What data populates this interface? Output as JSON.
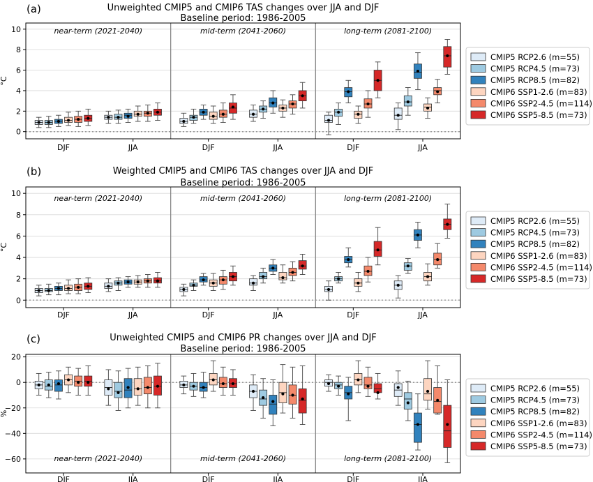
{
  "colors": {
    "CMIP5 RCP2.6": "#deebf7",
    "CMIP5 RCP4.5": "#9ecae1",
    "CMIP5 RCP8.5": "#3182bd",
    "CMIP6 SSP1-2.6": "#fdd5c0",
    "CMIP6 SSP2-4.5": "#f4896b",
    "CMIP6 SSP5-8.5": "#d62828"
  },
  "legend_entries": [
    "CMIP5 RCP2.6 (m=55)",
    "CMIP5 RCP4.5 (m=73)",
    "CMIP5 RCP8.5 (m=82)",
    "CMIP6 SSP1-2.6 (m=83)",
    "CMIP6 SSP2-4.5 (m=114)",
    "CMIP6 SSP5-8.5 (m=73)"
  ],
  "panels": [
    {
      "label": "(a)",
      "title1": "Unweighted CMIP5 and CMIP6 TAS changes over JJA and DJF",
      "title2": "Baseline period: 1986-2005",
      "ylabel": "°C",
      "ticks": [
        "0",
        "2",
        "4",
        "6",
        "8",
        "10"
      ],
      "xticks": [
        "DJF",
        "JJA",
        "DJF",
        "JJA",
        "DJF",
        "JJA"
      ],
      "periods": [
        "near-term (2021-2040)",
        "mid-term (2041-2060)",
        "long-term (2081-2100)"
      ]
    },
    {
      "label": "(b)",
      "title1": "Weighted CMIP5 and CMIP6 TAS changes over JJA and DJF",
      "title2": "Baseline period: 1986-2005",
      "ylabel": "°C",
      "ticks": [
        "0",
        "2",
        "4",
        "6",
        "8",
        "10"
      ],
      "xticks": [
        "DJF",
        "JJA",
        "DJF",
        "JJA",
        "DJF",
        "JJA"
      ],
      "periods": [
        "near-term (2021-2040)",
        "mid-term (2041-2060)",
        "long-term (2081-2100)"
      ]
    },
    {
      "label": "(c)",
      "title1": "Unweighted CMIP5 and CMIP6 PR changes over JJA and DJF",
      "title2": "Baseline period: 1986-2005",
      "ylabel": "%",
      "ticks": [
        "20",
        "0",
        "−20",
        "−40",
        "−60"
      ],
      "xticks": [
        "DJF",
        "JJA",
        "DJF",
        "JJA",
        "DJF",
        "JJA"
      ],
      "periods": [
        "near-term (2021-2040)",
        "mid-term (2041-2060)",
        "long-term (2081-2100)"
      ]
    }
  ],
  "chart_data": [
    {
      "type": "box",
      "title": "Unweighted CMIP5 and CMIP6 TAS changes over JJA and DJF",
      "subtitle": "Baseline period: 1986-2005",
      "ylabel": "°C",
      "ylim": [
        -0.7,
        10.6
      ],
      "periods": [
        "near-term (2021-2040)",
        "mid-term (2041-2060)",
        "long-term (2081-2100)"
      ],
      "seasons": [
        "DJF",
        "JJA"
      ],
      "series_names": [
        "CMIP5 RCP2.6 (m=55)",
        "CMIP5 RCP4.5 (m=73)",
        "CMIP5 RCP8.5 (m=82)",
        "CMIP6 SSP1-2.6 (m=83)",
        "CMIP6 SSP2-4.5 (m=114)",
        "CMIP6 SSP5-8.5 (m=73)"
      ],
      "boxes": [
        [
          [
            [
              0.4,
              0.7,
              0.9,
              1.1,
              1.4,
              0.9
            ],
            [
              0.4,
              0.7,
              0.9,
              1.1,
              1.5,
              0.9
            ],
            [
              0.5,
              0.8,
              1.0,
              1.2,
              1.6,
              1.0
            ],
            [
              0.6,
              0.9,
              1.1,
              1.4,
              1.9,
              1.1
            ],
            [
              0.5,
              0.9,
              1.2,
              1.5,
              2.0,
              1.2
            ],
            [
              0.6,
              1.0,
              1.3,
              1.6,
              2.2,
              1.3
            ]
          ],
          [
            [
              0.8,
              1.2,
              1.4,
              1.6,
              2.0,
              1.4
            ],
            [
              0.8,
              1.2,
              1.4,
              1.7,
              2.1,
              1.4
            ],
            [
              0.9,
              1.3,
              1.6,
              1.8,
              2.2,
              1.5
            ],
            [
              1.0,
              1.5,
              1.7,
              2.0,
              2.5,
              1.7
            ],
            [
              1.0,
              1.5,
              1.8,
              2.0,
              2.6,
              1.8
            ],
            [
              1.1,
              1.6,
              1.9,
              2.2,
              2.8,
              1.9
            ]
          ]
        ],
        [
          [
            [
              0.5,
              0.8,
              1.0,
              1.3,
              1.8,
              1.0
            ],
            [
              0.8,
              1.1,
              1.4,
              1.6,
              2.2,
              1.4
            ],
            [
              1.2,
              1.6,
              1.9,
              2.2,
              2.6,
              1.9
            ],
            [
              0.8,
              1.2,
              1.5,
              1.9,
              2.5,
              1.5
            ],
            [
              0.9,
              1.4,
              1.7,
              2.1,
              2.8,
              1.7
            ],
            [
              1.2,
              1.8,
              2.3,
              2.8,
              3.6,
              2.4
            ]
          ],
          [
            [
              1.0,
              1.4,
              1.7,
              2.1,
              2.6,
              1.7
            ],
            [
              1.3,
              1.9,
              2.2,
              2.5,
              3.0,
              2.2
            ],
            [
              1.8,
              2.4,
              2.8,
              3.3,
              4.0,
              2.8
            ],
            [
              1.4,
              2.0,
              2.3,
              2.6,
              3.1,
              2.3
            ],
            [
              1.7,
              2.3,
              2.7,
              3.0,
              3.6,
              2.7
            ],
            [
              2.3,
              3.0,
              3.5,
              4.0,
              4.8,
              3.5
            ]
          ]
        ],
        [
          [
            [
              -0.3,
              0.9,
              1.1,
              1.6,
              1.9,
              1.1
            ],
            [
              0.7,
              1.5,
              1.9,
              2.2,
              2.8,
              1.9
            ],
            [
              2.8,
              3.4,
              3.9,
              4.3,
              5.0,
              3.9
            ],
            [
              0.8,
              1.3,
              1.7,
              2.0,
              2.5,
              1.7
            ],
            [
              1.4,
              2.3,
              2.7,
              3.2,
              4.0,
              2.7
            ],
            [
              3.3,
              4.0,
              5.0,
              6.0,
              6.8,
              5.0
            ]
          ],
          [
            [
              0.2,
              1.2,
              1.6,
              2.3,
              2.8,
              1.6
            ],
            [
              1.6,
              2.5,
              2.9,
              3.5,
              4.3,
              2.9
            ],
            [
              4.1,
              5.2,
              5.8,
              6.6,
              7.7,
              5.9
            ],
            [
              1.3,
              2.0,
              2.4,
              2.7,
              3.3,
              2.3
            ],
            [
              2.8,
              3.6,
              4.0,
              4.3,
              5.1,
              3.9
            ],
            [
              5.6,
              6.3,
              7.4,
              8.3,
              9.0,
              7.4
            ]
          ]
        ]
      ]
    },
    {
      "type": "box",
      "title": "Weighted CMIP5 and CMIP6 TAS changes over JJA and DJF",
      "subtitle": "Baseline period: 1986-2005",
      "ylabel": "°C",
      "ylim": [
        -0.7,
        10.6
      ],
      "periods": [
        "near-term (2021-2040)",
        "mid-term (2041-2060)",
        "long-term (2081-2100)"
      ],
      "seasons": [
        "DJF",
        "JJA"
      ],
      "series_names": [
        "CMIP5 RCP2.6 (m=55)",
        "CMIP5 RCP4.5 (m=73)",
        "CMIP5 RCP8.5 (m=82)",
        "CMIP6 SSP1-2.6 (m=83)",
        "CMIP6 SSP2-4.5 (m=114)",
        "CMIP6 SSP5-8.5 (m=73)"
      ],
      "boxes": [
        [
          [
            [
              0.4,
              0.7,
              0.9,
              1.1,
              1.4,
              0.9
            ],
            [
              0.5,
              0.8,
              0.9,
              1.1,
              1.5,
              0.9
            ],
            [
              0.5,
              0.9,
              1.1,
              1.3,
              1.6,
              1.1
            ],
            [
              0.6,
              0.9,
              1.1,
              1.4,
              1.9,
              1.1
            ],
            [
              0.6,
              0.9,
              1.2,
              1.5,
              2.0,
              1.2
            ],
            [
              0.7,
              1.0,
              1.3,
              1.6,
              2.1,
              1.3
            ]
          ],
          [
            [
              0.8,
              1.1,
              1.3,
              1.6,
              2.0,
              1.3
            ],
            [
              0.9,
              1.4,
              1.6,
              1.8,
              2.1,
              1.6
            ],
            [
              1.2,
              1.5,
              1.7,
              1.9,
              2.2,
              1.7
            ],
            [
              1.2,
              1.5,
              1.7,
              1.9,
              2.3,
              1.7
            ],
            [
              1.2,
              1.6,
              1.8,
              2.0,
              2.4,
              1.8
            ],
            [
              1.2,
              1.6,
              1.8,
              2.1,
              2.6,
              1.8
            ]
          ]
        ],
        [
          [
            [
              0.4,
              0.8,
              1.0,
              1.2,
              1.5,
              1.0
            ],
            [
              0.9,
              1.3,
              1.4,
              1.6,
              1.9,
              1.4
            ],
            [
              1.4,
              1.7,
              1.9,
              2.2,
              2.5,
              1.9
            ],
            [
              0.9,
              1.3,
              1.6,
              1.9,
              2.5,
              1.6
            ],
            [
              1.0,
              1.5,
              1.9,
              2.2,
              2.8,
              1.9
            ],
            [
              1.4,
              1.8,
              2.2,
              2.6,
              3.2,
              2.2
            ]
          ],
          [
            [
              0.9,
              1.4,
              1.6,
              2.0,
              2.3,
              1.6
            ],
            [
              1.6,
              2.0,
              2.2,
              2.6,
              3.0,
              2.2
            ],
            [
              2.4,
              2.7,
              3.0,
              3.3,
              3.8,
              3.0
            ],
            [
              1.6,
              1.9,
              2.1,
              2.6,
              3.3,
              2.1
            ],
            [
              1.8,
              2.3,
              2.6,
              3.0,
              3.6,
              2.6
            ],
            [
              2.4,
              2.9,
              3.2,
              3.7,
              4.3,
              3.2
            ]
          ]
        ],
        [
          [
            [
              0.0,
              0.8,
              1.0,
              1.3,
              1.8,
              1.0
            ],
            [
              1.6,
              1.8,
              2.0,
              2.2,
              2.6,
              2.0
            ],
            [
              3.1,
              3.5,
              3.8,
              4.1,
              4.9,
              3.8
            ],
            [
              0.8,
              1.3,
              1.6,
              2.0,
              2.6,
              1.6
            ],
            [
              1.7,
              2.3,
              2.7,
              3.2,
              4.0,
              2.7
            ],
            [
              3.3,
              4.1,
              4.7,
              5.5,
              6.8,
              4.7
            ]
          ],
          [
            [
              0.2,
              1.0,
              1.4,
              1.8,
              2.3,
              1.4
            ],
            [
              2.5,
              2.8,
              3.2,
              3.5,
              3.9,
              3.2
            ],
            [
              4.9,
              5.6,
              6.1,
              6.6,
              7.3,
              6.1
            ],
            [
              1.4,
              1.8,
              2.2,
              2.6,
              3.4,
              2.2
            ],
            [
              3.0,
              3.3,
              3.8,
              4.4,
              5.3,
              3.8
            ],
            [
              5.8,
              6.6,
              7.1,
              7.6,
              9.0,
              7.1
            ]
          ]
        ]
      ]
    },
    {
      "type": "box",
      "title": "Unweighted CMIP5 and CMIP6 PR changes over JJA and DJF",
      "subtitle": "Baseline period: 1986-2005",
      "ylabel": "%",
      "ylim": [
        -71,
        22
      ],
      "periods": [
        "near-term (2021-2040)",
        "mid-term (2041-2060)",
        "long-term (2081-2100)"
      ],
      "seasons": [
        "DJF",
        "JJA"
      ],
      "series_names": [
        "CMIP5 RCP2.6 (m=55)",
        "CMIP5 RCP4.5 (m=73)",
        "CMIP5 RCP8.5 (m=82)",
        "CMIP6 SSP1-2.6 (m=83)",
        "CMIP6 SSP2-4.5 (m=114)",
        "CMIP6 SSP5-8.5 (m=73)"
      ],
      "boxes": [
        [
          [
            [
              -10,
              -5,
              -2,
              1,
              7,
              -2
            ],
            [
              -12,
              -6,
              -3,
              2,
              8,
              -2
            ],
            [
              -13,
              -7,
              -2,
              2,
              9,
              -1
            ],
            [
              -8,
              -2,
              2,
              6,
              12,
              2
            ],
            [
              -10,
              -3,
              1,
              5,
              11,
              0
            ],
            [
              -10,
              -3,
              1,
              5,
              13,
              0
            ]
          ],
          [
            [
              -18,
              -10,
              -4,
              2,
              10,
              -5
            ],
            [
              -22,
              -12,
              -7,
              0,
              9,
              -8
            ],
            [
              -20,
              -12,
              -6,
              3,
              11,
              -4
            ],
            [
              -18,
              -10,
              -5,
              3,
              12,
              -5
            ],
            [
              -20,
              -9,
              -4,
              4,
              13,
              -4
            ],
            [
              -20,
              -10,
              -3,
              5,
              15,
              -3
            ]
          ]
        ],
        [
          [
            [
              -9,
              -4,
              -2,
              1,
              5,
              -2
            ],
            [
              -11,
              -6,
              -3,
              0,
              7,
              -3
            ],
            [
              -12,
              -7,
              -4,
              0,
              8,
              -4
            ],
            [
              -7,
              -2,
              2,
              7,
              17,
              2
            ],
            [
              -10,
              -4,
              -1,
              4,
              12,
              -1
            ],
            [
              -10,
              -4,
              -1,
              3,
              10,
              -1
            ]
          ],
          [
            [
              -22,
              -12,
              -7,
              -2,
              6,
              -7
            ],
            [
              -28,
              -18,
              -13,
              -6,
              3,
              -12
            ],
            [
              -34,
              -25,
              -17,
              -10,
              2,
              -15
            ],
            [
              -24,
              -16,
              -8,
              0,
              14,
              -9
            ],
            [
              -28,
              -17,
              -10,
              -2,
              12,
              -10
            ],
            [
              -33,
              -24,
              -14,
              -5,
              13,
              -13
            ]
          ]
        ],
        [
          [
            [
              -7,
              -3,
              0,
              2,
              6,
              -1
            ],
            [
              -10,
              -5,
              -2,
              0,
              5,
              -3
            ],
            [
              -30,
              -13,
              -8,
              -3,
              4,
              -9
            ],
            [
              -8,
              -2,
              2,
              7,
              17,
              2
            ],
            [
              -11,
              -5,
              -2,
              4,
              12,
              -3
            ],
            [
              -13,
              -8,
              -5,
              -1,
              7,
              -8
            ]
          ],
          [
            [
              -18,
              -11,
              -6,
              -1,
              9,
              -4
            ],
            [
              -30,
              -21,
              -13,
              -8,
              1,
              -16
            ],
            [
              -53,
              -47,
              -33,
              -24,
              -9,
              -33
            ],
            [
              -21,
              -14,
              -9,
              3,
              17,
              -7
            ],
            [
              -25,
              -24,
              -15,
              -4,
              13,
              -14
            ],
            [
              -63,
              -51,
              -38,
              -18,
              2,
              -33
            ]
          ]
        ]
      ]
    }
  ]
}
